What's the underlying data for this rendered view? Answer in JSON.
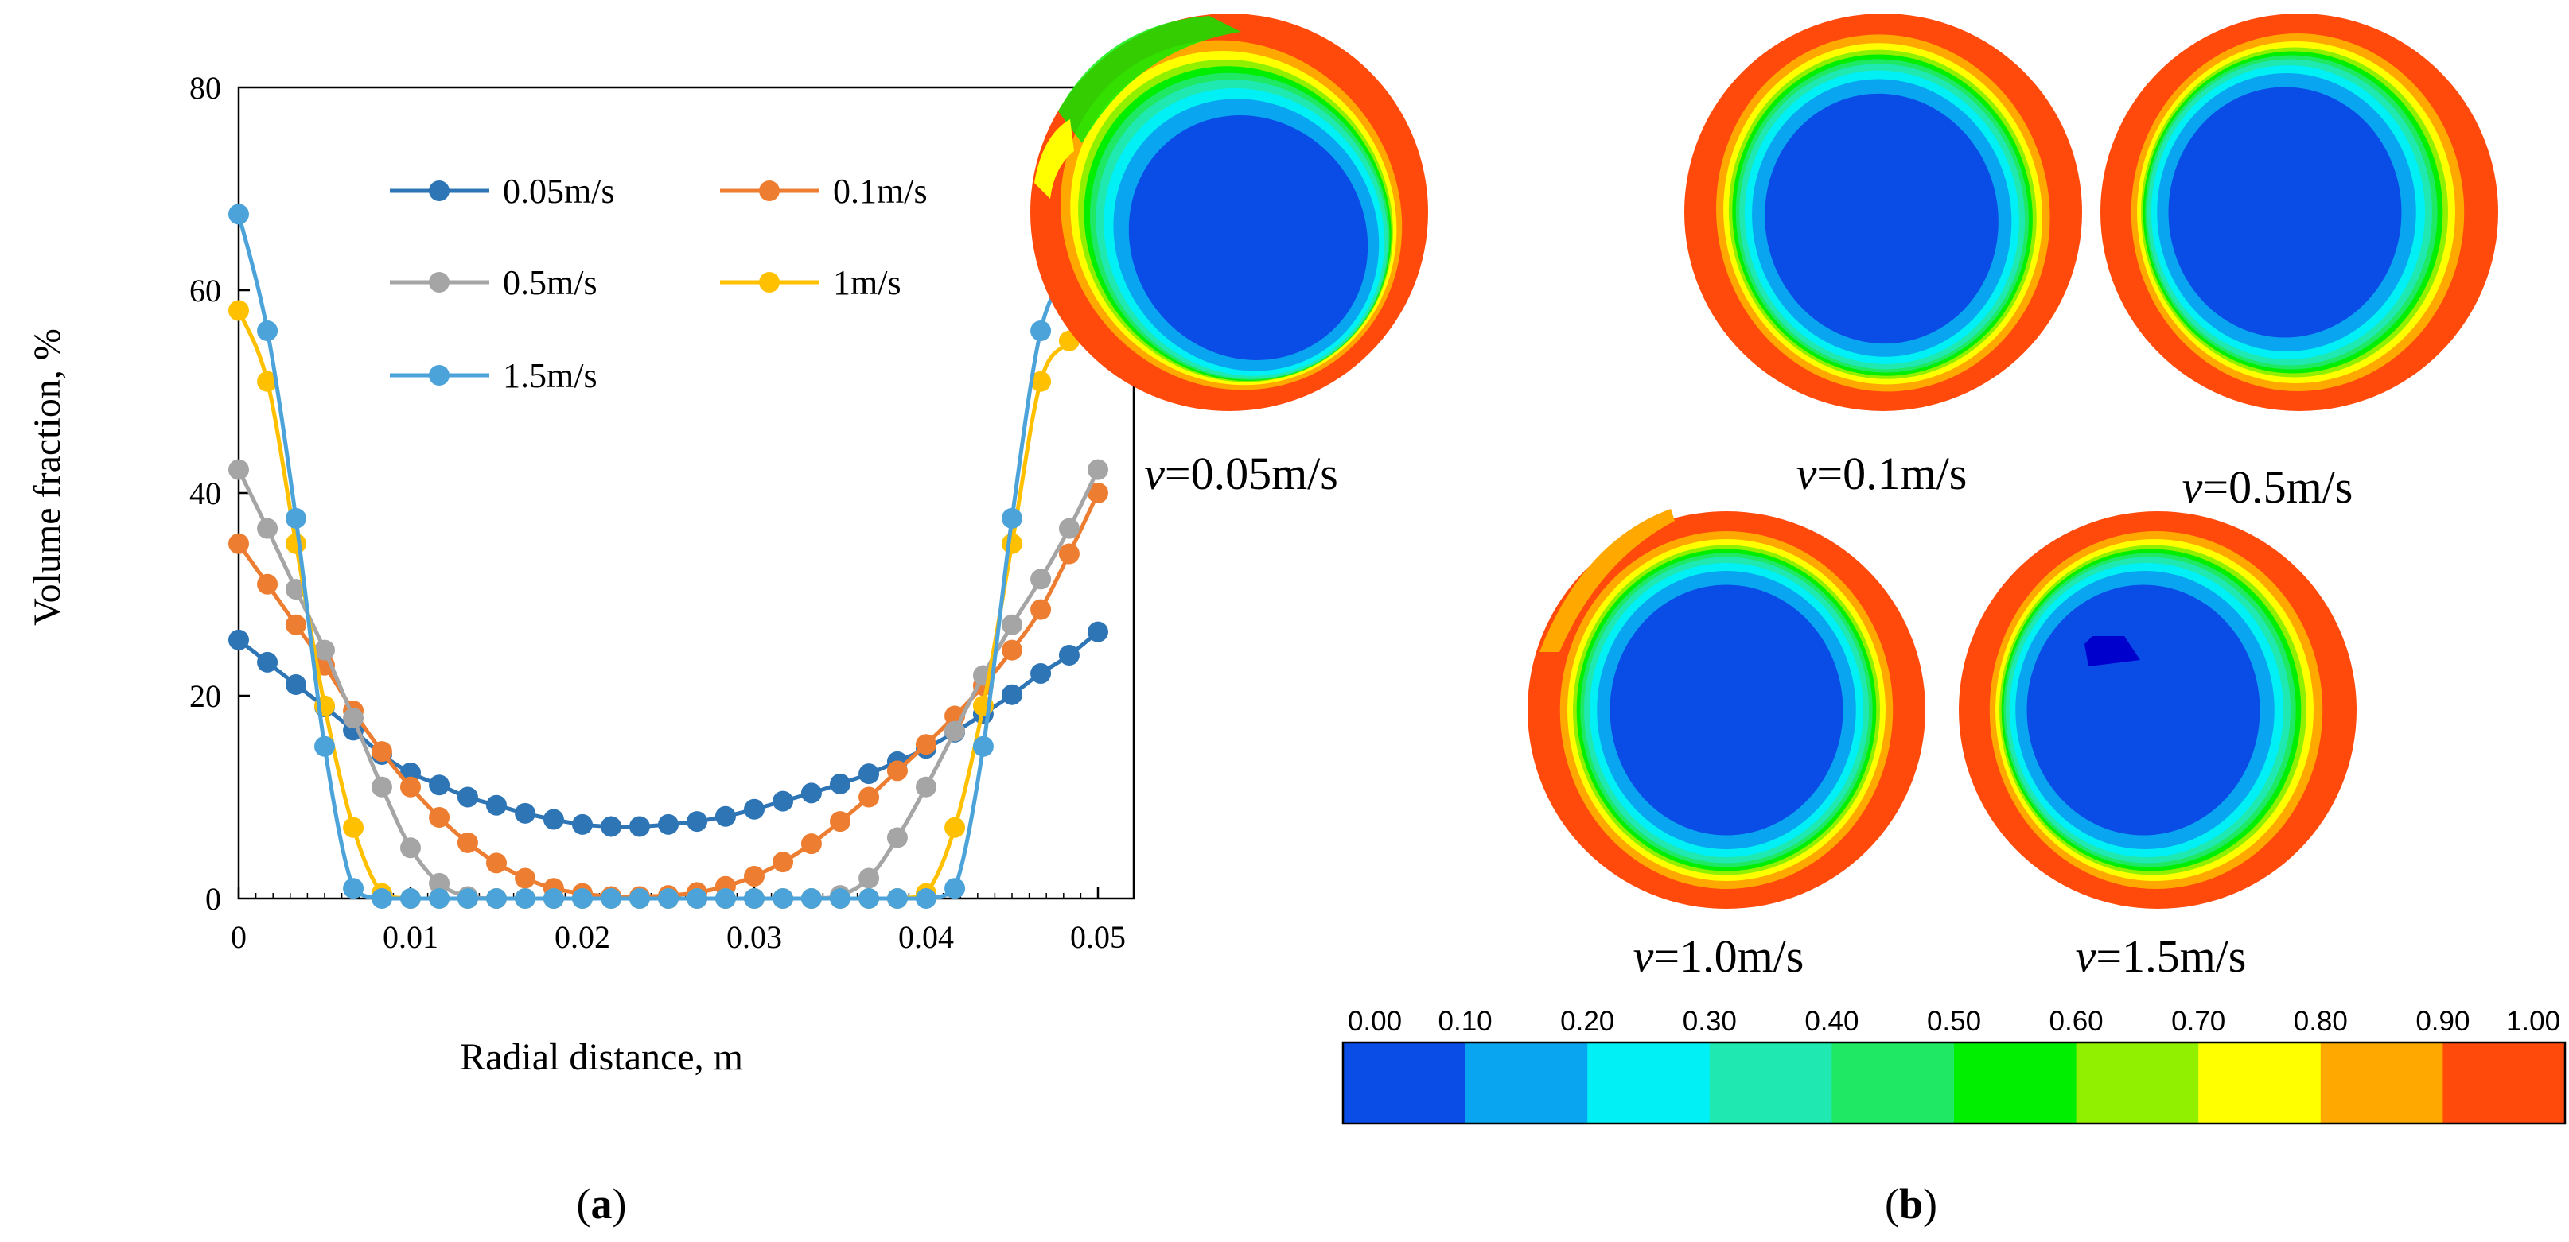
{
  "chart_data": {
    "type": "line",
    "ylabel": "Volume fraction, %",
    "xlabel": "Radial distance, m",
    "xlim": [
      0,
      0.05
    ],
    "ylim": [
      0,
      80
    ],
    "xticks": [
      "0",
      "0.01",
      "0.02",
      "0.03",
      "0.04",
      "0.05"
    ],
    "yticks": [
      "0",
      "20",
      "40",
      "60",
      "80"
    ],
    "legend_position": "top-center",
    "x": [
      0,
      0.00167,
      0.00333,
      0.005,
      0.00667,
      0.00833,
      0.01,
      0.01167,
      0.01333,
      0.015,
      0.01667,
      0.01833,
      0.02,
      0.02167,
      0.02333,
      0.025,
      0.02667,
      0.02833,
      0.03,
      0.03167,
      0.03333,
      0.035,
      0.03667,
      0.03833,
      0.04,
      0.04167,
      0.04333,
      0.045,
      0.04667,
      0.04833,
      0.05
    ],
    "series": [
      {
        "name": "0.05m/s",
        "color": "#2E75B6",
        "values": [
          25.5,
          23.3,
          21.1,
          18.9,
          16.6,
          14.2,
          12.4,
          11.2,
          10.0,
          9.2,
          8.4,
          7.8,
          7.3,
          7.1,
          7.1,
          7.3,
          7.6,
          8.1,
          8.8,
          9.6,
          10.4,
          11.3,
          12.3,
          13.5,
          14.8,
          16.4,
          18.2,
          20.1,
          22.2,
          24.0,
          26.3
        ]
      },
      {
        "name": "0.1m/s",
        "color": "#ED7D31",
        "values": [
          35.0,
          31.0,
          27.0,
          23.0,
          18.5,
          14.5,
          11.0,
          8.0,
          5.5,
          3.5,
          2.0,
          1.0,
          0.5,
          0.2,
          0.2,
          0.3,
          0.6,
          1.2,
          2.2,
          3.6,
          5.4,
          7.6,
          10.0,
          12.6,
          15.2,
          18.0,
          21.0,
          24.5,
          28.5,
          34.0,
          40.0
        ]
      },
      {
        "name": "0.5m/s",
        "color": "#A5A5A5",
        "values": [
          42.3,
          36.5,
          30.5,
          24.5,
          17.8,
          11.0,
          5.0,
          1.5,
          0.2,
          0,
          0,
          0,
          0,
          0,
          0,
          0,
          0,
          0,
          0,
          0,
          0,
          0.3,
          2.0,
          6.0,
          11.0,
          16.5,
          22.0,
          27.0,
          31.5,
          36.5,
          42.3
        ]
      },
      {
        "name": "1m/s",
        "color": "#FFC000",
        "values": [
          58.0,
          51.0,
          35.0,
          19.0,
          7.0,
          0.5,
          0,
          0,
          0,
          0,
          0,
          0,
          0,
          0,
          0,
          0,
          0,
          0,
          0,
          0,
          0,
          0,
          0,
          0,
          0.5,
          7.0,
          19.0,
          35.0,
          51.0,
          55.0,
          58.0
        ]
      },
      {
        "name": "1.5m/s",
        "color": "#4BA3D9",
        "values": [
          67.5,
          56.0,
          37.5,
          15.0,
          1.0,
          0,
          0,
          0,
          0,
          0,
          0,
          0,
          0,
          0,
          0,
          0,
          0,
          0,
          0,
          0,
          0,
          0,
          0,
          0,
          0,
          1.0,
          15.0,
          37.5,
          56.0,
          62.0,
          67.5
        ]
      }
    ]
  },
  "panels": {
    "a_label": "a",
    "b_label": "b"
  },
  "contours": {
    "captions": [
      {
        "prefix": "v",
        "value": "=0.05m/s"
      },
      {
        "prefix": "v",
        "value": "=0.1m/s"
      },
      {
        "prefix": "v",
        "value": "=0.5m/s"
      },
      {
        "prefix": "v",
        "value": "=1.0m/s"
      },
      {
        "prefix": "v",
        "value": "=1.5m/s"
      }
    ],
    "colorbar": {
      "labels": [
        "0.00",
        "0.10",
        "0.20",
        "0.30",
        "0.40",
        "0.50",
        "0.60",
        "0.70",
        "0.80",
        "0.90",
        "1.00"
      ],
      "colors": [
        "#0A4CE6",
        "#0AA5F0",
        "#00F0F5",
        "#1FE8B0",
        "#1EE864",
        "#00EE00",
        "#90F000",
        "#FFFF00",
        "#FFA800",
        "#FF4A0C"
      ]
    }
  }
}
